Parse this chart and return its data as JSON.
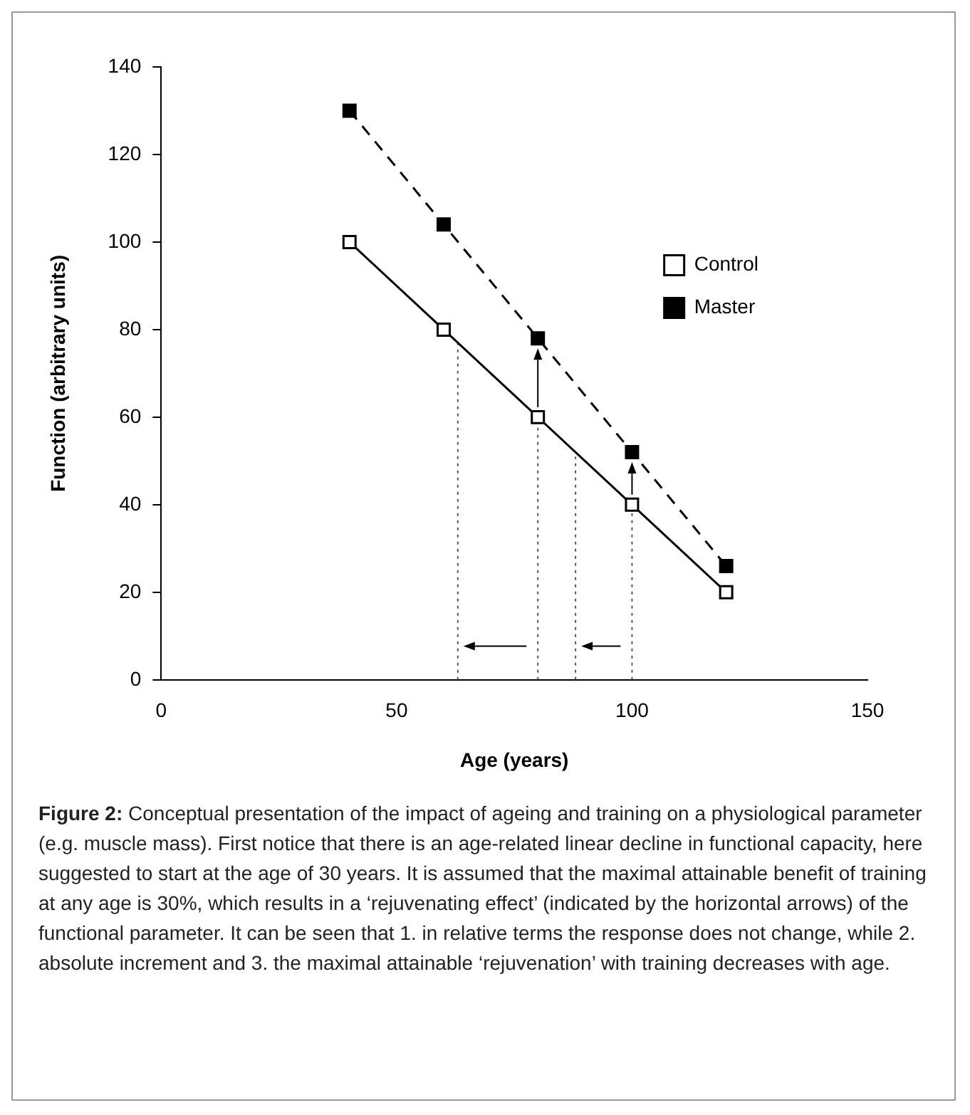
{
  "chart_data": {
    "type": "line",
    "xlabel": "Age (years)",
    "ylabel": "Function (arbitrary units)",
    "xlim": [
      0,
      150
    ],
    "xticks": [
      0,
      50,
      100,
      150
    ],
    "ylim": [
      0,
      140
    ],
    "yticks": [
      0,
      20,
      40,
      60,
      80,
      100,
      120,
      140
    ],
    "grid": false,
    "legend": "top right",
    "series": [
      {
        "name": "Control",
        "color": "#000000",
        "x": [
          40,
          60,
          80,
          100,
          120
        ],
        "values": [
          100,
          80,
          60,
          40,
          20
        ],
        "marker": "square",
        "line_style": "solid"
      },
      {
        "name": "Master",
        "color": "#000000",
        "x": [
          40,
          60,
          80,
          100,
          120
        ],
        "values": [
          130,
          104,
          78,
          52,
          26
        ],
        "marker": "square",
        "line_style": "dashed"
      },
      {
        "color": "#555555",
        "x": [
          63,
          63
        ],
        "values": [
          0,
          78
        ],
        "marker": "none",
        "line_style": "dotted"
      },
      {
        "color": "#555555",
        "x": [
          80,
          80
        ],
        "values": [
          0,
          60
        ],
        "marker": "none",
        "line_style": "dotted"
      },
      {
        "color": "#555555",
        "x": [
          88,
          88
        ],
        "values": [
          0,
          51
        ],
        "marker": "none",
        "line_style": "dotted"
      },
      {
        "color": "#555555",
        "x": [
          100,
          100
        ],
        "values": [
          0,
          40
        ],
        "marker": "none",
        "line_style": "dotted"
      }
    ],
    "annotations": [
      "Figure 2:",
      "Conceptual presentation of the impact of ageing and training on a physiological parameter (e.g. muscle mass). First notice that there is an age-related linear decline in functional capacity, here suggested to start at the age of 30 years. It is assumed that the maximal attainable benefit of training at any age is 30%, which results in a ‘rejuvenating effect’ (indicated by the horizontal arrows) of the functional parameter. It can be seen that 1. in relative terms the response does not change, while 2. absolute increment and 3. the maximal attainable ‘rejuvenation’ with training decreases with age."
    ]
  }
}
